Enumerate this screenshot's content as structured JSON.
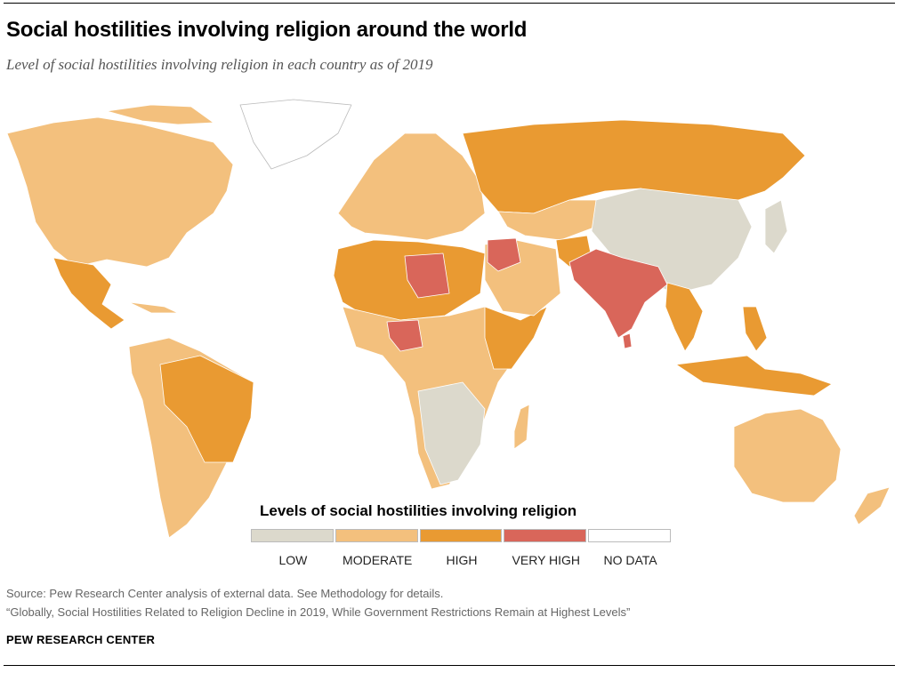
{
  "header": {
    "title": "Social hostilities involving religion around the world",
    "subtitle": "Level of social hostilities involving religion in each country as of 2019"
  },
  "legend": {
    "title": "Levels of social hostilities involving religion",
    "items": [
      {
        "label": "LOW",
        "color": "#dcd9cc"
      },
      {
        "label": "MODERATE",
        "color": "#f3c07d"
      },
      {
        "label": "HIGH",
        "color": "#e99a32"
      },
      {
        "label": "VERY HIGH",
        "color": "#d9665a"
      },
      {
        "label": "NO DATA",
        "color": "#ffffff"
      }
    ]
  },
  "map_regions": [
    {
      "name": "greenland",
      "level": "NO DATA"
    },
    {
      "name": "north-america",
      "level": "MODERATE"
    },
    {
      "name": "mexico-central-america",
      "level": "HIGH"
    },
    {
      "name": "south-america",
      "level": "MODERATE"
    },
    {
      "name": "brazil",
      "level": "HIGH"
    },
    {
      "name": "europe",
      "level": "MODERATE"
    },
    {
      "name": "russia",
      "level": "HIGH"
    },
    {
      "name": "north-africa",
      "level": "HIGH"
    },
    {
      "name": "libya",
      "level": "VERY HIGH"
    },
    {
      "name": "nigeria",
      "level": "VERY HIGH"
    },
    {
      "name": "southern-africa",
      "level": "LOW"
    },
    {
      "name": "middle-east",
      "level": "MODERATE"
    },
    {
      "name": "india-pakistan",
      "level": "VERY HIGH"
    },
    {
      "name": "china-mongolia",
      "level": "LOW"
    },
    {
      "name": "southeast-asia",
      "level": "HIGH"
    },
    {
      "name": "australia",
      "level": "MODERATE"
    }
  ],
  "footer": {
    "source": "Source: Pew Research Center analysis of external data. See Methodology for details.",
    "citation": "“Globally, Social Hostilities Related to Religion Decline in 2019, While Government Restrictions Remain at Highest Levels”",
    "organization": "PEW RESEARCH CENTER"
  }
}
